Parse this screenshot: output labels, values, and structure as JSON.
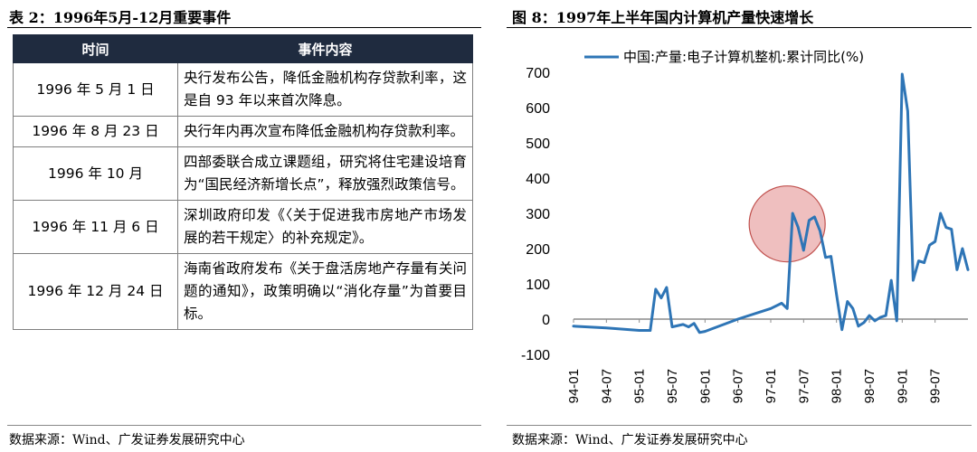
{
  "left": {
    "title": "表 2：1996年5月-12月重要事件",
    "headers": [
      "时间",
      "事件内容"
    ],
    "rows": [
      {
        "date": "1996 年 5 月 1 日",
        "event": "央行发布公告，降低金融机构存贷款利率，这是自 93 年以来首次降息。"
      },
      {
        "date": "1996 年 8 月 23 日",
        "event": "央行年内再次宣布降低金融机构存贷款利率。"
      },
      {
        "date": "1996 年 10 月",
        "event": "四部委联合成立课题组，研究将住宅建设培育为“国民经济新增长点”，释放强烈政策信号。"
      },
      {
        "date": "1996 年 11 月 6 日",
        "event": "深圳政府印发《〈关于促进我市房地产市场发展的若干规定〉的补充规定》。"
      },
      {
        "date": "1996 年 12 月 24 日",
        "event": "海南省政府发布《关于盘活房地产存量有关问题的通知》，政策明确以“消化存量”为首要目标。"
      }
    ],
    "source": "数据来源：Wind、广发证券发展研究中心"
  },
  "right": {
    "title": "图 8：1997年上半年国内计算机产量快速增长",
    "source": "数据来源：Wind、广发证券发展研究中心"
  },
  "chart_data": {
    "type": "line",
    "series": [
      {
        "name": "中国:产量:电子计算机整机:累计同比(%)",
        "color": "#2e75b6",
        "points": [
          [
            "1994-01",
            -20
          ],
          [
            "1994-07",
            -25
          ],
          [
            "1995-01",
            -32
          ],
          [
            "1995-03",
            -32
          ],
          [
            "1995-04",
            85
          ],
          [
            "1995-05",
            60
          ],
          [
            "1995-06",
            90
          ],
          [
            "1995-07",
            -22
          ],
          [
            "1995-09",
            -15
          ],
          [
            "1995-10",
            -22
          ],
          [
            "1995-11",
            -12
          ],
          [
            "1995-12",
            -38
          ],
          [
            "1996-01",
            -35
          ],
          [
            "1996-07",
            0
          ],
          [
            "1997-01",
            30
          ],
          [
            "1997-03",
            45
          ],
          [
            "1997-04",
            30
          ],
          [
            "1997-05",
            300
          ],
          [
            "1997-06",
            260
          ],
          [
            "1997-07",
            195
          ],
          [
            "1997-08",
            280
          ],
          [
            "1997-09",
            290
          ],
          [
            "1997-10",
            250
          ],
          [
            "1997-11",
            175
          ],
          [
            "1997-12",
            178
          ],
          [
            "1998-01",
            70
          ],
          [
            "1998-02",
            -30
          ],
          [
            "1998-03",
            50
          ],
          [
            "1998-04",
            30
          ],
          [
            "1998-05",
            -20
          ],
          [
            "1998-06",
            -10
          ],
          [
            "1998-07",
            10
          ],
          [
            "1998-08",
            -5
          ],
          [
            "1998-09",
            5
          ],
          [
            "1998-10",
            10
          ],
          [
            "1998-11",
            110
          ],
          [
            "1998-12",
            -5
          ],
          [
            "1999-01",
            695
          ],
          [
            "1999-02",
            590
          ],
          [
            "1999-03",
            110
          ],
          [
            "1999-04",
            165
          ],
          [
            "1999-05",
            160
          ],
          [
            "1999-06",
            210
          ],
          [
            "1999-07",
            220
          ],
          [
            "1999-08",
            300
          ],
          [
            "1999-09",
            260
          ],
          [
            "1999-10",
            255
          ],
          [
            "1999-11",
            140
          ],
          [
            "1999-12",
            200
          ],
          [
            "2000-01",
            140
          ]
        ]
      }
    ],
    "ylim": [
      -100,
      700
    ],
    "yticks": [
      -100,
      0,
      100,
      200,
      300,
      400,
      500,
      600,
      700
    ],
    "xlim": [
      "1994-01",
      "2000-01"
    ],
    "xticks": [
      "94-01",
      "94-07",
      "95-01",
      "95-07",
      "96-01",
      "96-07",
      "97-01",
      "97-07",
      "98-01",
      "98-07",
      "99-01",
      "99-07"
    ],
    "highlight": {
      "center": [
        "1997-04",
        270
      ],
      "label": "circle"
    },
    "legend": "top",
    "grid": false
  }
}
